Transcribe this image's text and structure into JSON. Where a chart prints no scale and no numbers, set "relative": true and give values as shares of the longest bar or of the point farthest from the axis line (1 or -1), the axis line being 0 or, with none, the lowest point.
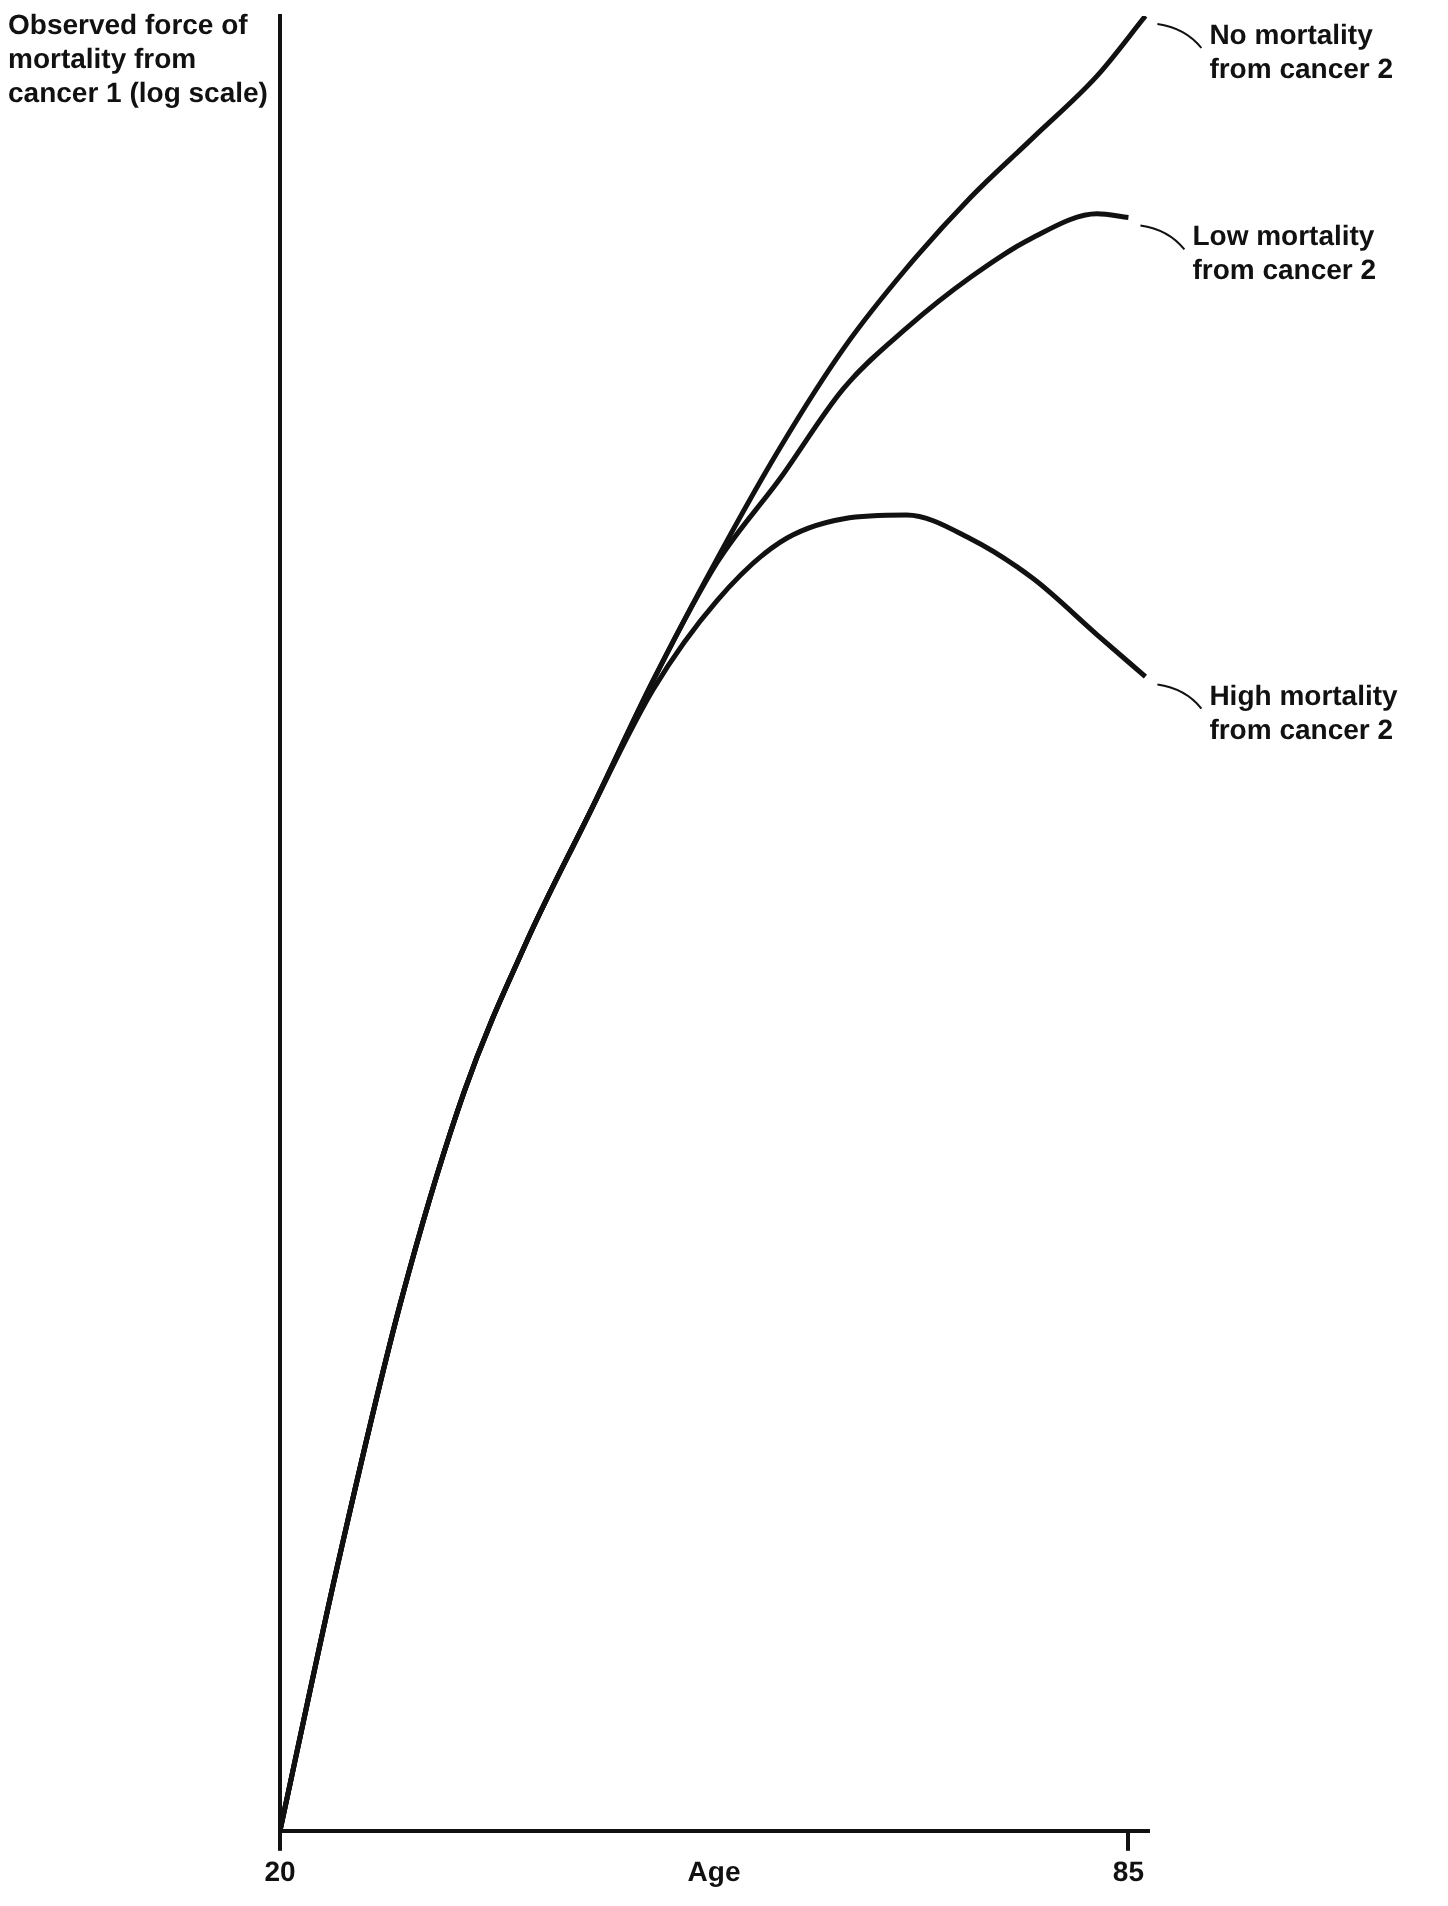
{
  "chart_data": {
    "type": "line",
    "relative": true,
    "xlabel": "Age",
    "ylabel": "Observed force of mortality from cancer 1 (log scale)",
    "xlim": [
      20,
      86.5
    ],
    "xticks": [
      20,
      85
    ],
    "grid": false,
    "legend": "right",
    "marker": "none",
    "line_style": "solid",
    "series": [
      {
        "name": "No mortality from cancer 2",
        "color": "#111111",
        "x": [
          20,
          24.4,
          29.2,
          34.1,
          38.9,
          43.8,
          48.6,
          53.5,
          58.3,
          63.2,
          68.0,
          72.9,
          77.7,
          82.6,
          86.3
        ],
        "values": [
          0,
          0.146,
          0.29,
          0.407,
          0.49,
          0.562,
          0.634,
          0.701,
          0.762,
          0.817,
          0.861,
          0.9,
          0.933,
          0.967,
          1
        ]
      },
      {
        "name": "Low mortality from cancer 2",
        "color": "#111111",
        "x": [
          20,
          24.4,
          29.2,
          34.1,
          38.9,
          43.8,
          48.6,
          53.5,
          58.3,
          63.2,
          68.0,
          72.9,
          77.7,
          82.6,
          85
        ],
        "values": [
          0,
          0.146,
          0.29,
          0.407,
          0.49,
          0.562,
          0.634,
          0.699,
          0.745,
          0.795,
          0.828,
          0.856,
          0.878,
          0.891,
          0.889
        ]
      },
      {
        "name": "High mortality from cancer 2",
        "color": "#111111",
        "x": [
          20,
          24.4,
          29.2,
          34.1,
          38.9,
          43.8,
          48.6,
          53.5,
          58.3,
          63.2,
          68.0,
          72.9,
          77.7,
          82.6,
          86.3
        ],
        "values": [
          0,
          0.146,
          0.29,
          0.407,
          0.49,
          0.562,
          0.629,
          0.678,
          0.71,
          0.723,
          0.725,
          0.712,
          0.69,
          0.659,
          0.636
        ]
      }
    ]
  }
}
